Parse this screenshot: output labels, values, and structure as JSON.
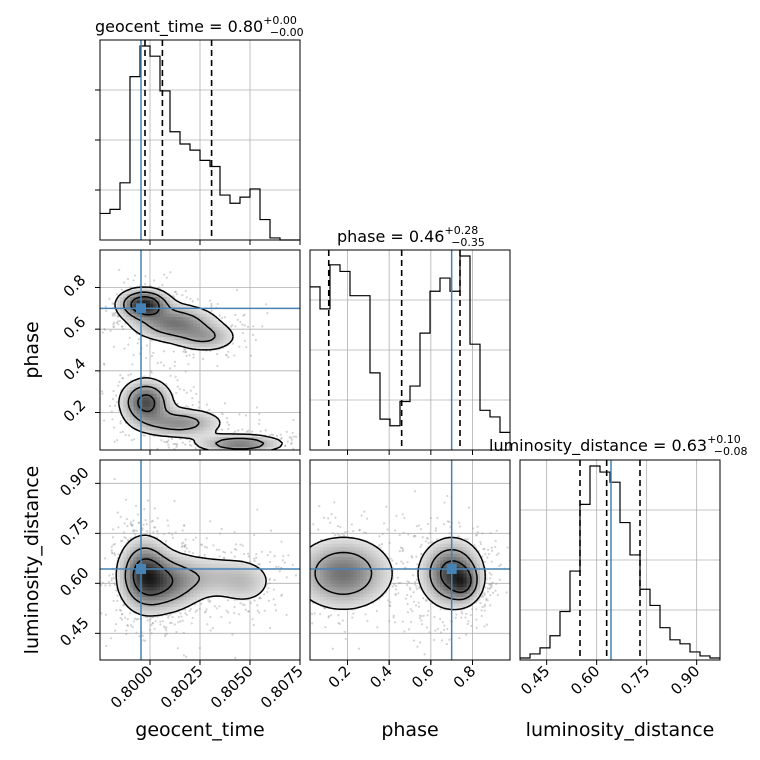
{
  "figure": {
    "type": "corner"
  },
  "parameters": [
    {
      "name": "geocent_time",
      "truth": 0.79955,
      "range": [
        0.7975,
        0.8075
      ],
      "ticks": [
        "0.8000",
        "0.8025",
        "0.8050",
        "0.8075"
      ],
      "tick_values": [
        0.8,
        0.8025,
        0.805,
        0.8075
      ],
      "title": "geocent_time = 0.80",
      "title_sup": "+0.00",
      "title_sub": "−0.00",
      "quantiles": [
        0.79975,
        0.80062,
        0.80308
      ]
    },
    {
      "name": "phase",
      "truth": 0.7,
      "range": [
        0.02,
        0.98
      ],
      "ticks": [
        "0.2",
        "0.4",
        "0.6",
        "0.8"
      ],
      "tick_values": [
        0.2,
        0.4,
        0.6,
        0.8
      ],
      "title": "phase = 0.46",
      "title_sup": "+0.28",
      "title_sub": "−0.35",
      "quantiles": [
        0.11,
        0.46,
        0.74
      ]
    },
    {
      "name": "luminosity_distance",
      "truth": 0.643,
      "range": [
        0.37,
        0.97
      ],
      "ticks": [
        "0.45",
        "0.60",
        "0.75",
        "0.90"
      ],
      "tick_values": [
        0.45,
        0.6,
        0.75,
        0.9
      ],
      "title": "luminosity_distance = 0.63",
      "title_sup": "+0.10",
      "title_sub": "−0.08",
      "quantiles": [
        0.55,
        0.63,
        0.73
      ]
    }
  ],
  "chart_data": {
    "type": "corner",
    "histograms": [
      {
        "parameter": "geocent_time",
        "bin_edges": [
          0.7975,
          0.798,
          0.7985,
          0.799,
          0.7995,
          0.8,
          0.8005,
          0.801,
          0.8015,
          0.802,
          0.8025,
          0.803,
          0.8035,
          0.804,
          0.8045,
          0.805,
          0.8055,
          0.806,
          0.8065,
          0.807,
          0.8075
        ],
        "counts": [
          0.13,
          0.15,
          0.28,
          0.8,
          0.95,
          0.9,
          0.73,
          0.53,
          0.47,
          0.44,
          0.39,
          0.36,
          0.22,
          0.18,
          0.21,
          0.25,
          0.1,
          0.01,
          0,
          0
        ]
      },
      {
        "parameter": "phase",
        "bin_edges": [
          0.02,
          0.068,
          0.116,
          0.164,
          0.212,
          0.26,
          0.308,
          0.356,
          0.404,
          0.452,
          0.5,
          0.548,
          0.596,
          0.644,
          0.692,
          0.74,
          0.788,
          0.836,
          0.884,
          0.932,
          0.98
        ],
        "counts": [
          0.74,
          0.64,
          0.84,
          0.81,
          0.7,
          0.7,
          0.35,
          0.14,
          0.11,
          0.22,
          0.29,
          0.53,
          0.72,
          0.78,
          0.72,
          0.88,
          0.48,
          0.18,
          0.15,
          0.08
        ]
      },
      {
        "parameter": "luminosity_distance",
        "bin_edges": [
          0.37,
          0.4,
          0.43,
          0.46,
          0.49,
          0.52,
          0.55,
          0.58,
          0.61,
          0.64,
          0.67,
          0.7,
          0.73,
          0.76,
          0.79,
          0.82,
          0.85,
          0.88,
          0.91,
          0.94,
          0.97
        ],
        "counts": [
          0.01,
          0.03,
          0.06,
          0.12,
          0.24,
          0.44,
          0.77,
          0.96,
          0.93,
          0.88,
          0.68,
          0.52,
          0.35,
          0.27,
          0.16,
          0.1,
          0.08,
          0.04,
          0.02,
          0.01
        ]
      }
    ],
    "joint_densities": [
      {
        "x": "geocent_time",
        "y": "phase",
        "components": [
          {
            "mx": 0.7997,
            "my": 0.72,
            "sx": 0.0007,
            "sy": 0.04,
            "w": 1.0,
            "rot": -0.2
          },
          {
            "mx": 0.8012,
            "my": 0.63,
            "sx": 0.0012,
            "sy": 0.05,
            "w": 0.6,
            "rot": -0.5
          },
          {
            "mx": 0.8028,
            "my": 0.56,
            "sx": 0.0009,
            "sy": 0.04,
            "w": 0.35,
            "rot": 0
          },
          {
            "mx": 0.7998,
            "my": 0.25,
            "sx": 0.0007,
            "sy": 0.06,
            "w": 0.8,
            "rot": 0
          },
          {
            "mx": 0.8015,
            "my": 0.15,
            "sx": 0.0012,
            "sy": 0.04,
            "w": 0.5,
            "rot": -0.4
          },
          {
            "mx": 0.8045,
            "my": 0.05,
            "sx": 0.0012,
            "sy": 0.025,
            "w": 0.6,
            "rot": 0
          }
        ]
      },
      {
        "x": "geocent_time",
        "y": "luminosity_distance",
        "components": [
          {
            "mx": 0.7997,
            "my": 0.63,
            "sx": 0.0007,
            "sy": 0.06,
            "w": 1.0,
            "rot": 0
          },
          {
            "mx": 0.8008,
            "my": 0.6,
            "sx": 0.001,
            "sy": 0.05,
            "w": 0.7,
            "rot": 0
          },
          {
            "mx": 0.803,
            "my": 0.62,
            "sx": 0.0015,
            "sy": 0.04,
            "w": 0.35,
            "rot": 0
          },
          {
            "mx": 0.8048,
            "my": 0.6,
            "sx": 0.0008,
            "sy": 0.04,
            "w": 0.25,
            "rot": 0
          }
        ]
      },
      {
        "x": "phase",
        "y": "luminosity_distance",
        "components": [
          {
            "mx": 0.18,
            "my": 0.63,
            "sx": 0.13,
            "sy": 0.06,
            "w": 0.75,
            "rot": 0
          },
          {
            "mx": 0.7,
            "my": 0.63,
            "sx": 0.08,
            "sy": 0.055,
            "w": 1.0,
            "rot": 0
          },
          {
            "mx": 0.76,
            "my": 0.6,
            "sx": 0.04,
            "sy": 0.03,
            "w": 0.5,
            "rot": 0
          }
        ]
      }
    ],
    "contour_levels": [
      0.12,
      0.35,
      0.65
    ],
    "grid": true,
    "truth_color": "#4682b4",
    "hist_color": "#000000",
    "sample_color": "#9e9e9e"
  }
}
